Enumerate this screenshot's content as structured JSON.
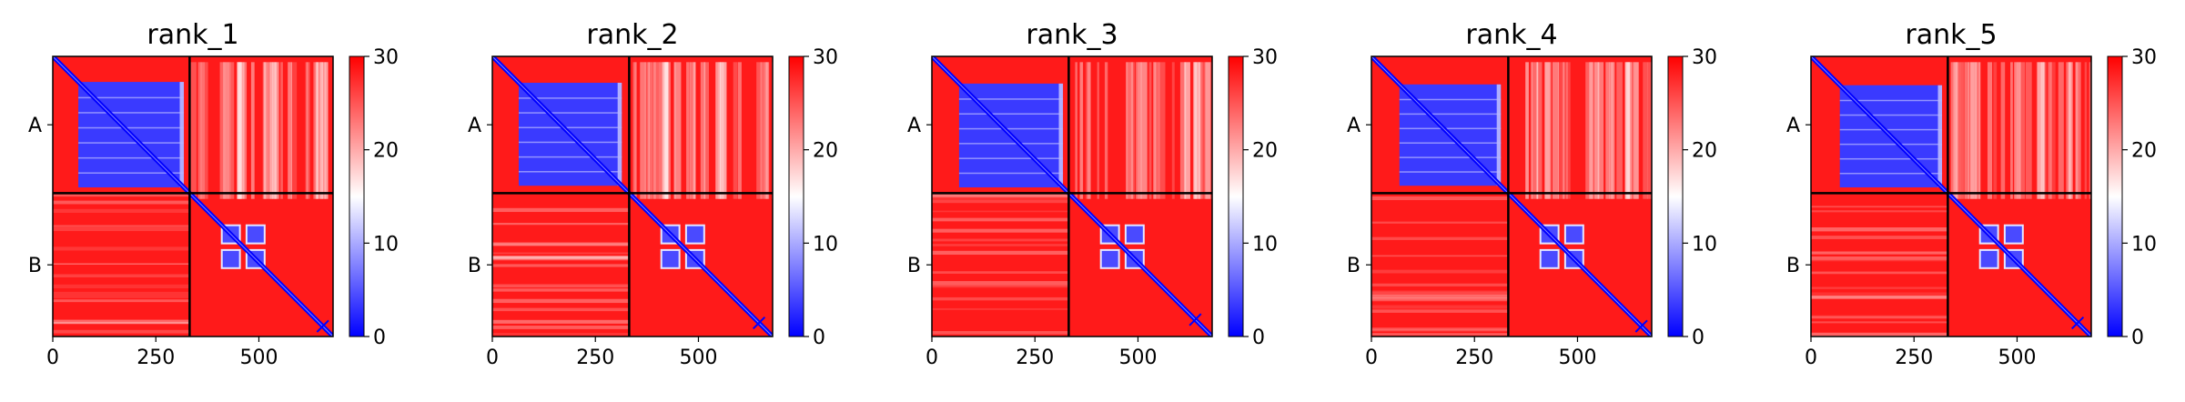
{
  "chart_data": {
    "type": "heatmap",
    "colormap": {
      "low": "#0000ff",
      "mid": "#ffffff",
      "high": "#ff0000"
    },
    "value_range": [
      0,
      30
    ],
    "colorbar_ticks": [
      0,
      10,
      20,
      30
    ],
    "chains": [
      {
        "label": "A",
        "start": 0,
        "end": 332
      },
      {
        "label": "B",
        "start": 332,
        "end": 680
      }
    ],
    "x_ticks": [
      0,
      250,
      500
    ],
    "total_residues": 680,
    "panels": [
      {
        "title": "rank_1"
      },
      {
        "title": "rank_2"
      },
      {
        "title": "rank_3"
      },
      {
        "title": "rank_4"
      },
      {
        "title": "rank_5"
      }
    ]
  }
}
